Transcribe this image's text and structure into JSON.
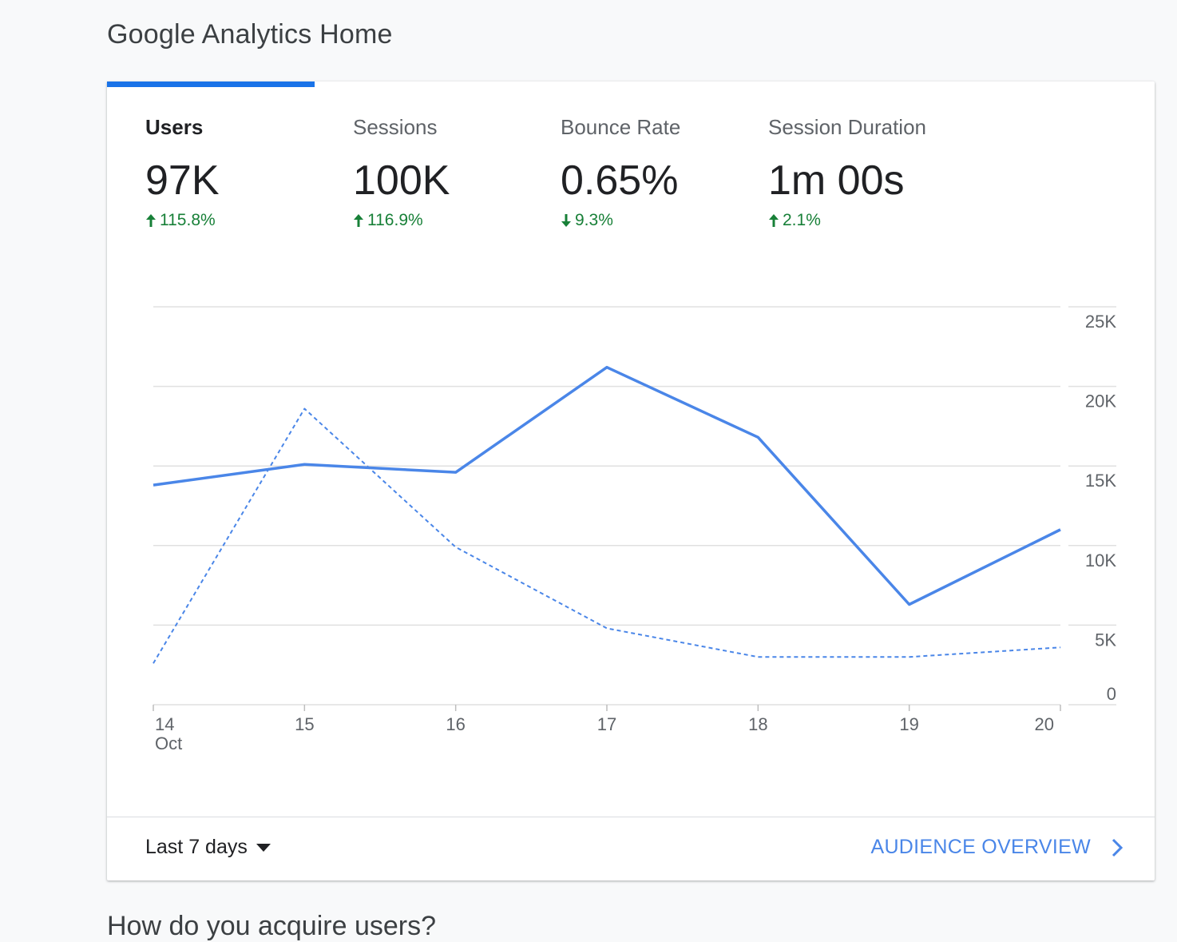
{
  "page": {
    "title": "Google Analytics Home"
  },
  "metrics": [
    {
      "label": "Users",
      "value": "97K",
      "change": "115.8%",
      "direction": "up"
    },
    {
      "label": "Sessions",
      "value": "100K",
      "change": "116.9%",
      "direction": "up"
    },
    {
      "label": "Bounce Rate",
      "value": "0.65%",
      "change": "9.3%",
      "direction": "down"
    },
    {
      "label": "Session Duration",
      "value": "1m 00s",
      "change": "2.1%",
      "direction": "up"
    }
  ],
  "colors": {
    "accent": "#1a73e8",
    "series": "#4a86e8",
    "positive": "#188038"
  },
  "chart_data": {
    "type": "line",
    "categories": [
      "14",
      "15",
      "16",
      "17",
      "18",
      "19",
      "20"
    ],
    "x_month_label": "Oct",
    "y_ticks": [
      "0",
      "5K",
      "10K",
      "15K",
      "20K",
      "25K"
    ],
    "ylim": [
      0,
      25000
    ],
    "series": [
      {
        "style": "solid",
        "values": [
          13800,
          15100,
          14600,
          21200,
          16800,
          6300,
          11000
        ]
      },
      {
        "style": "dashed",
        "values": [
          2600,
          18600,
          9900,
          4800,
          3000,
          3000,
          3600
        ]
      }
    ],
    "grid": true
  },
  "footer": {
    "date_range": "Last 7 days",
    "link_label": "AUDIENCE OVERVIEW"
  },
  "below": {
    "heading": "How do you acquire users?"
  }
}
